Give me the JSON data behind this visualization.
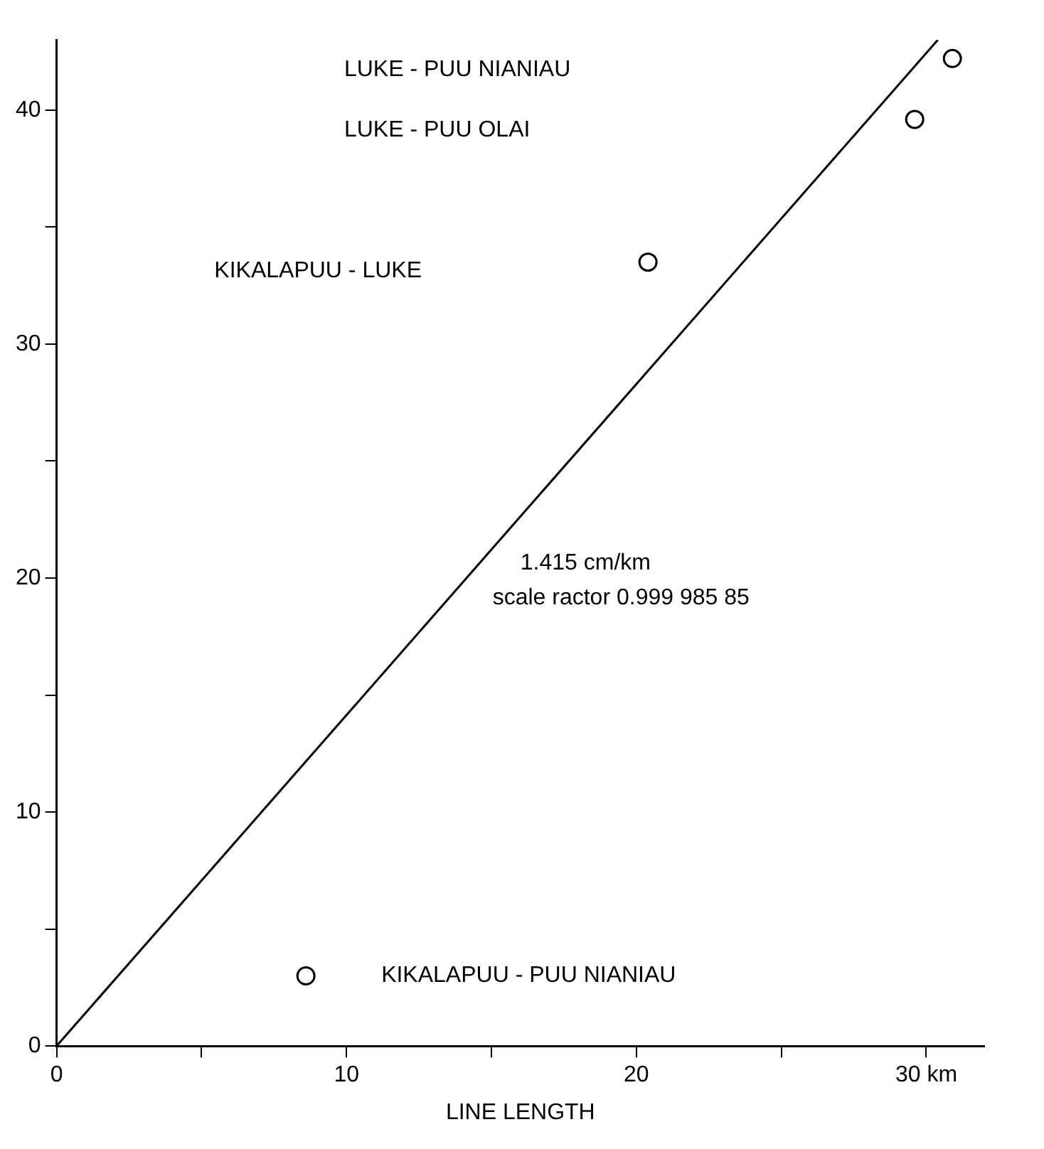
{
  "chart_data": {
    "type": "scatter",
    "xlabel": "LINE LENGTH",
    "xlim": [
      0,
      32
    ],
    "ylim": [
      0,
      43
    ],
    "xticks": [
      0,
      {
        "value": 5,
        "label": null
      },
      10,
      {
        "value": 15,
        "label": null
      },
      20,
      {
        "value": 25,
        "label": null
      },
      {
        "value": 30,
        "label": "30 km"
      }
    ],
    "yticks": [
      0,
      {
        "value": 5,
        "label": null
      },
      10,
      {
        "value": 15,
        "label": null
      },
      20,
      {
        "value": 25,
        "label": null
      },
      30,
      {
        "value": 35,
        "label": null
      },
      40
    ],
    "grid": false,
    "legend": false,
    "marker": "circle",
    "series": [
      {
        "type": "scatter",
        "color": "#000000",
        "x": [
          8.6,
          20.4,
          29.6,
          30.9
        ],
        "values": [
          3.0,
          33.5,
          39.6,
          42.2
        ]
      },
      {
        "type": "line",
        "color": "#000000",
        "x": [
          0,
          30.4
        ],
        "values": [
          0,
          43.0
        ],
        "marker": "none",
        "line_style": "solid"
      }
    ],
    "annotations": [
      "KIKALAPUU - PUU NIANIAU",
      "KIKALAPUU - LUKE",
      "LUKE - PUU OLAI",
      "LUKE - PUU NIANIAU",
      "1.415 cm/km",
      "scale ractor 0.999 985 85"
    ]
  }
}
